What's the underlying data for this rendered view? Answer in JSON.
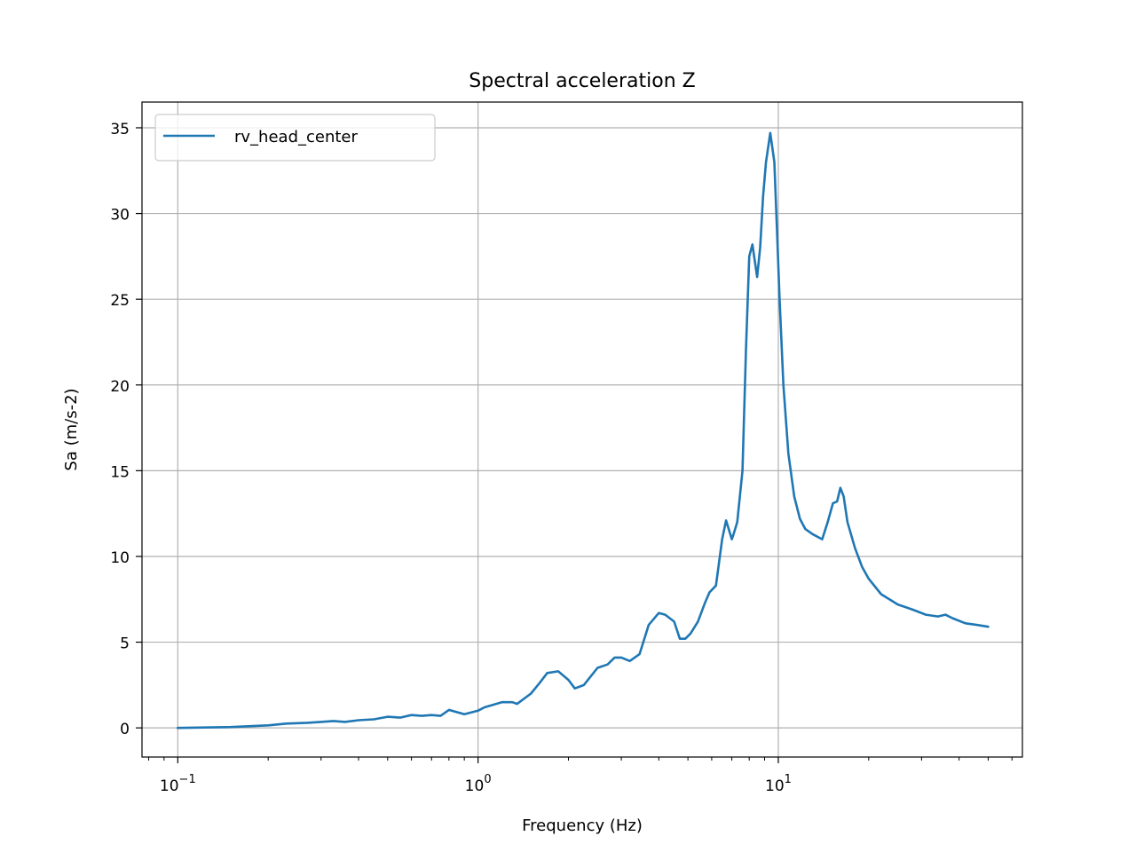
{
  "chart_data": {
    "type": "line",
    "title": "Spectral acceleration Z",
    "xlabel": "Frequency (Hz)",
    "ylabel": "Sa (m/s-2)",
    "xscale": "log",
    "xlim": [
      0.076,
      65
    ],
    "ylim": [
      -1.7,
      36.5
    ],
    "grid": true,
    "legend_position": "top-left",
    "x_ticks": [
      {
        "value": 0.1,
        "base": "10",
        "exp": "−1"
      },
      {
        "value": 1,
        "base": "10",
        "exp": "0"
      },
      {
        "value": 10,
        "base": "10",
        "exp": "1"
      }
    ],
    "y_ticks": [
      "0",
      "5",
      "10",
      "15",
      "20",
      "25",
      "30",
      "35"
    ],
    "series": [
      {
        "name": "rv_head_center",
        "color": "#1f77b4",
        "x": [
          0.1,
          0.15,
          0.2,
          0.23,
          0.27,
          0.3,
          0.33,
          0.36,
          0.4,
          0.45,
          0.5,
          0.55,
          0.6,
          0.65,
          0.7,
          0.75,
          0.8,
          0.9,
          1.0,
          1.05,
          1.1,
          1.2,
          1.3,
          1.35,
          1.5,
          1.6,
          1.7,
          1.85,
          2.0,
          2.1,
          2.25,
          2.5,
          2.7,
          2.85,
          3.0,
          3.2,
          3.45,
          3.7,
          4.0,
          4.2,
          4.5,
          4.7,
          4.9,
          5.1,
          5.4,
          5.7,
          5.9,
          6.2,
          6.5,
          6.7,
          7.0,
          7.1,
          7.3,
          7.6,
          7.8,
          8.0,
          8.2,
          8.5,
          8.7,
          8.9,
          9.1,
          9.4,
          9.7,
          9.9,
          10.1,
          10.4,
          10.8,
          11.3,
          11.8,
          12.3,
          13.0,
          14.0,
          14.6,
          15.2,
          15.7,
          16.1,
          16.5,
          17.0,
          18.0,
          19.0,
          20.0,
          22.0,
          25.0,
          28.0,
          31.0,
          34.0,
          36.0,
          38.0,
          42.0,
          46.0,
          50.0
        ],
        "values": [
          0.0,
          0.05,
          0.15,
          0.25,
          0.3,
          0.35,
          0.4,
          0.35,
          0.45,
          0.5,
          0.65,
          0.6,
          0.75,
          0.7,
          0.75,
          0.7,
          1.05,
          0.8,
          1.0,
          1.2,
          1.3,
          1.5,
          1.5,
          1.4,
          2.0,
          2.6,
          3.2,
          3.3,
          2.8,
          2.3,
          2.5,
          3.5,
          3.7,
          4.1,
          4.1,
          3.9,
          4.3,
          6.0,
          6.7,
          6.6,
          6.2,
          5.2,
          5.2,
          5.5,
          6.2,
          7.3,
          7.9,
          8.3,
          11.0,
          12.1,
          11.0,
          11.3,
          12.0,
          15.0,
          22.0,
          27.5,
          28.2,
          26.3,
          28.0,
          31.0,
          33.0,
          34.7,
          33.0,
          29.0,
          25.0,
          20.0,
          16.0,
          13.5,
          12.2,
          11.6,
          11.3,
          11.0,
          12.0,
          13.1,
          13.2,
          14.0,
          13.5,
          12.0,
          10.5,
          9.4,
          8.7,
          7.8,
          7.2,
          6.9,
          6.6,
          6.5,
          6.6,
          6.4,
          6.1,
          6.0,
          5.9
        ]
      }
    ]
  }
}
